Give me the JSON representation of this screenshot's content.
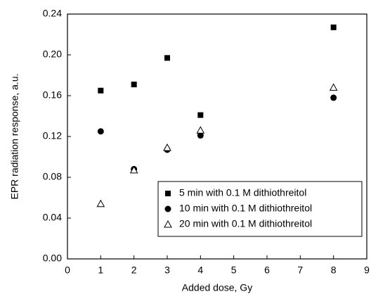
{
  "chart_data": {
    "type": "scatter",
    "x_label": "Added dose, Gy",
    "y_label": "EPR radiation response, a.u.",
    "x": [
      1,
      2,
      3,
      4,
      8
    ],
    "series": [
      {
        "name": "5 min with 0.1 M dithiothreitol",
        "color": "#000000",
        "marker": "square",
        "values": [
          0.165,
          0.171,
          0.197,
          0.141,
          0.227
        ]
      },
      {
        "name": "10 min with 0.1 M dithiothreitol",
        "color": "#000000",
        "marker": "circle",
        "values": [
          0.125,
          0.088,
          0.107,
          0.121,
          0.158
        ]
      },
      {
        "name": "20 min with 0.1 M dithiothreitol",
        "color": "#000000",
        "marker": "triangle-open",
        "values": [
          0.054,
          0.087,
          0.109,
          0.126,
          0.168
        ]
      }
    ],
    "xlim": [
      0,
      9
    ],
    "xticks": [
      0,
      1,
      2,
      3,
      4,
      5,
      6,
      7,
      8,
      9
    ],
    "ylim": [
      0,
      0.24
    ],
    "yticks": [
      {
        "value": 0,
        "label": "0.00"
      },
      0.04,
      0.08,
      0.12,
      0.16,
      {
        "value": 0.2,
        "label": "0.20"
      },
      0.24
    ],
    "legend": "lower-right"
  }
}
